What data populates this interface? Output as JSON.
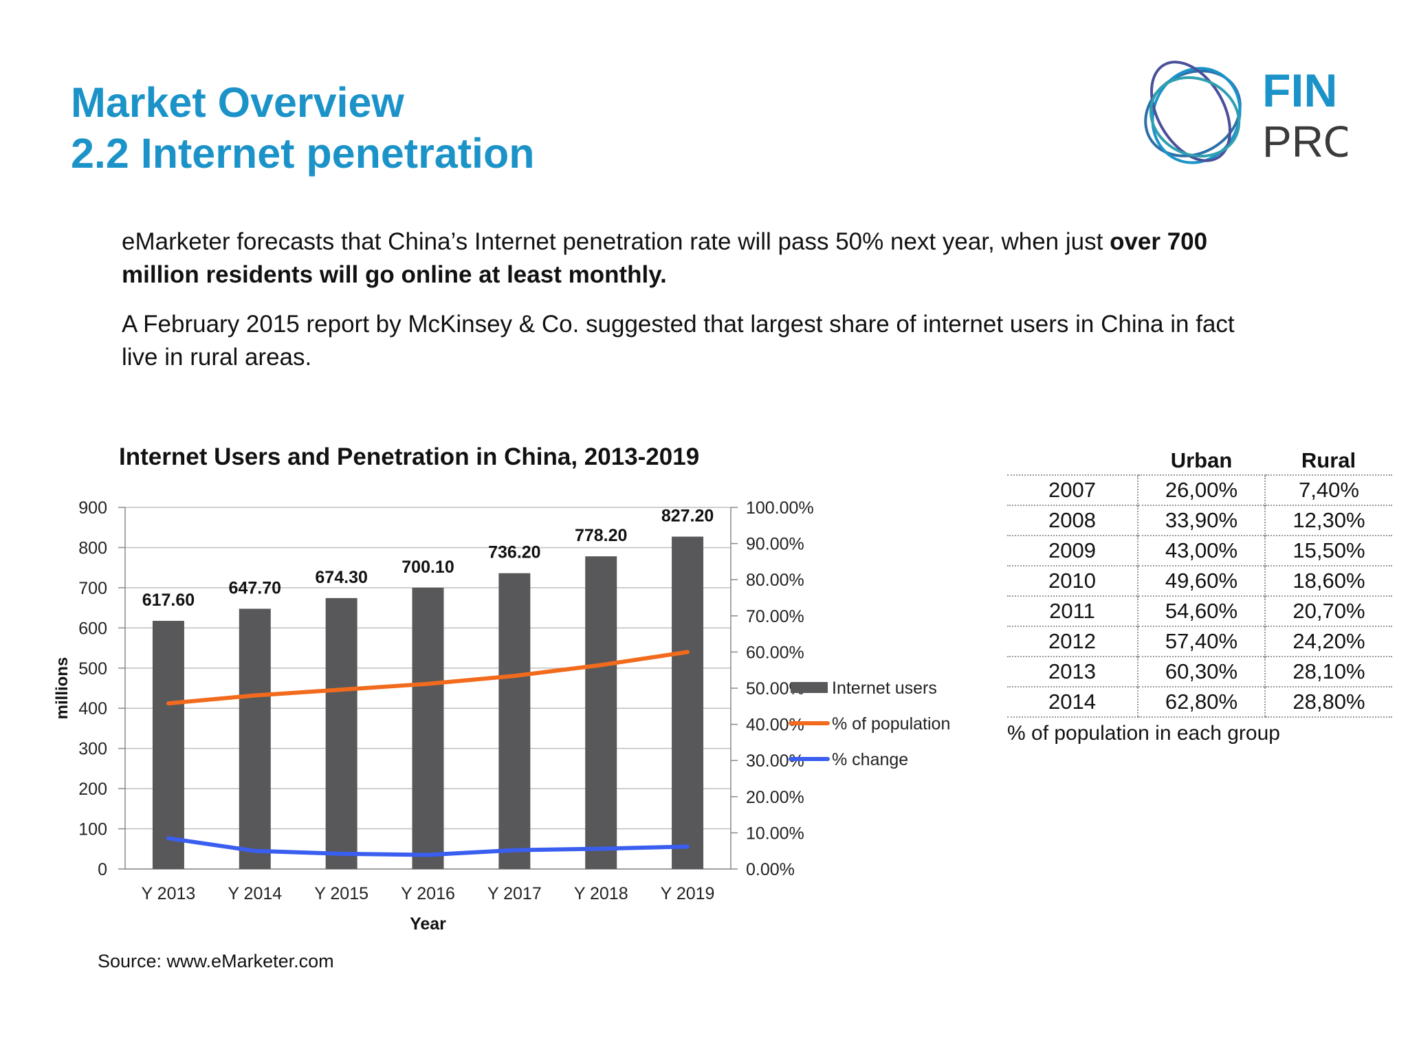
{
  "header": {
    "title_line1": "Market Overview",
    "title_line2": "2.2 Internet penetration"
  },
  "logo": {
    "text_top": "FIN",
    "text_bottom": "PRO",
    "icon": "finpro-ring-logo"
  },
  "intro": {
    "p1_normal": "eMarketer forecasts that China’s Internet penetration rate will pass 50% next year, when just ",
    "p1_bold": "over 700 million residents will go online at least monthly.",
    "p2": "A February 2015 report by McKinsey & Co. suggested that largest share of internet users in China in fact live in rural areas."
  },
  "colors": {
    "title": "#1b93c8",
    "bars": "#58585a",
    "population_line": "#f26b1d",
    "change_line": "#3a5ef0",
    "grid": "#bfbfbf"
  },
  "chart_data": {
    "type": "bar",
    "title": "Internet Users and Penetration in China, 2013-2019",
    "xlabel": "Year",
    "ylabel": "millions",
    "categories": [
      "Y 2013",
      "Y 2014",
      "Y 2015",
      "Y 2016",
      "Y 2017",
      "Y 2018",
      "Y 2019"
    ],
    "ylim": [
      0,
      900
    ],
    "y_ticks": [
      0,
      100,
      200,
      300,
      400,
      500,
      600,
      700,
      800,
      900
    ],
    "y2lim": [
      0,
      100
    ],
    "y2_tick_labels": [
      "0.00%",
      "10.00%",
      "20.00%",
      "30.00%",
      "40.00%",
      "50.00%",
      "60.00%",
      "70.00%",
      "80.00%",
      "90.00%",
      "100.00%"
    ],
    "series": [
      {
        "name": "Internet users",
        "kind": "bar",
        "axis": "left",
        "values": [
          617.6,
          647.7,
          674.3,
          700.1,
          736.2,
          778.2,
          827.2
        ],
        "labels": [
          "617.60",
          "647.70",
          "674.30",
          "700.10",
          "736.20",
          "778.20",
          "827.20"
        ]
      },
      {
        "name": "% of population",
        "kind": "line",
        "axis": "right",
        "values": [
          45.8,
          48.0,
          49.6,
          51.2,
          53.4,
          56.4,
          60.0
        ]
      },
      {
        "name": "% change",
        "kind": "line",
        "axis": "right",
        "values": [
          8.5,
          5.0,
          4.2,
          3.9,
          5.2,
          5.6,
          6.2
        ]
      }
    ],
    "grid": true,
    "legend_position": "right"
  },
  "source": "Source: www.eMarketer.com",
  "table": {
    "headers": [
      "",
      "Urban",
      "Rural"
    ],
    "rows": [
      [
        "2007",
        "26,00%",
        "7,40%"
      ],
      [
        "2008",
        "33,90%",
        "12,30%"
      ],
      [
        "2009",
        "43,00%",
        "15,50%"
      ],
      [
        "2010",
        "49,60%",
        "18,60%"
      ],
      [
        "2011",
        "54,60%",
        "20,70%"
      ],
      [
        "2012",
        "57,40%",
        "24,20%"
      ],
      [
        "2013",
        "60,30%",
        "28,10%"
      ],
      [
        "2014",
        "62,80%",
        "28,80%"
      ]
    ],
    "note": "% of population in each group"
  }
}
